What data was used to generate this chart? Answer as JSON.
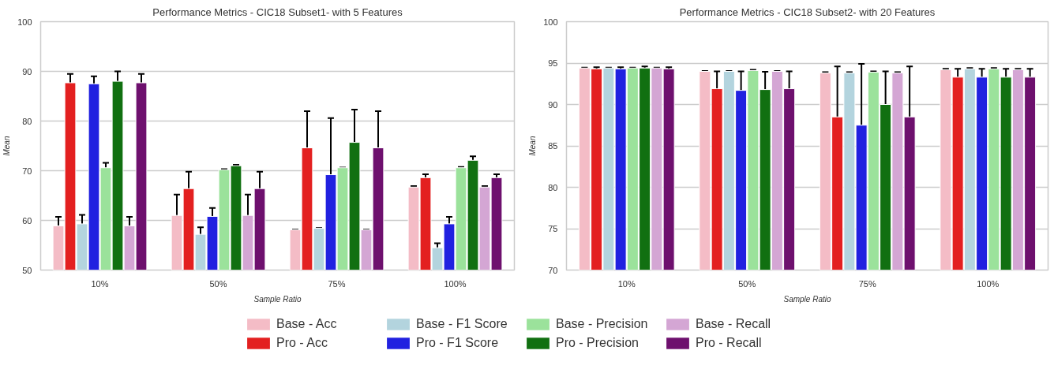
{
  "chart_data": [
    {
      "type": "bar",
      "title": "Performance Metrics - CIC18 Subset1- with 5 Features",
      "xlabel": "Sample Ratio",
      "ylabel": "Mean",
      "categories": [
        "10%",
        "50%",
        "75%",
        "100%"
      ],
      "ylim": [
        50,
        100
      ],
      "yticks": [
        50,
        60,
        70,
        80,
        90,
        100
      ],
      "grid": "y",
      "legend": "bottom",
      "series": [
        {
          "name": "Base - Acc",
          "color": "#f4bcc6",
          "values": [
            58.9,
            61.0,
            58.1,
            66.7
          ],
          "errors": [
            1.8,
            4.2,
            0.05,
            0.2
          ]
        },
        {
          "name": "Pro - Acc",
          "color": "#e32020",
          "values": [
            87.7,
            66.4,
            74.6,
            68.6
          ],
          "errors": [
            1.8,
            3.4,
            7.4,
            0.7
          ]
        },
        {
          "name": "Base - F1 Score",
          "color": "#b3d4de",
          "values": [
            59.3,
            57.2,
            58.4,
            54.5
          ],
          "errors": [
            1.8,
            1.4,
            0.05,
            0.9
          ]
        },
        {
          "name": "Pro - F1 Score",
          "color": "#2121e0",
          "values": [
            87.5,
            60.8,
            69.2,
            59.3
          ],
          "errors": [
            1.5,
            1.7,
            11.4,
            1.4
          ]
        },
        {
          "name": "Base - Precision",
          "color": "#9be29b",
          "values": [
            70.6,
            70.2,
            70.6,
            70.6
          ],
          "errors": [
            1.0,
            0.1,
            0.05,
            0.15
          ]
        },
        {
          "name": "Pro - Precision",
          "color": "#117011",
          "values": [
            88.0,
            71.0,
            75.7,
            72.1
          ],
          "errors": [
            2.0,
            0.2,
            6.6,
            0.8
          ]
        },
        {
          "name": "Base - Recall",
          "color": "#d4a6d4",
          "values": [
            58.9,
            61.0,
            58.1,
            66.7
          ],
          "errors": [
            1.8,
            4.2,
            0.05,
            0.2
          ]
        },
        {
          "name": "Pro - Recall",
          "color": "#6e106e",
          "values": [
            87.7,
            66.4,
            74.6,
            68.6
          ],
          "errors": [
            1.8,
            3.4,
            7.4,
            0.7
          ]
        }
      ]
    },
    {
      "type": "bar",
      "title": "Performance Metrics - CIC18 Subset2- with 20 Features",
      "xlabel": "Sample Ratio",
      "ylabel": "Mean",
      "categories": [
        "10%",
        "50%",
        "75%",
        "100%"
      ],
      "ylim": [
        70,
        100
      ],
      "yticks": [
        70,
        75,
        80,
        85,
        90,
        95,
        100
      ],
      "grid": "y",
      "series": [
        {
          "color": "#f4bcc6",
          "values": [
            94.4,
            94.0,
            93.8,
            94.2
          ],
          "errors": [
            0.05,
            0.05,
            0.1,
            0.1
          ]
        },
        {
          "color": "#e32020",
          "values": [
            94.3,
            91.9,
            88.5,
            93.3
          ],
          "errors": [
            0.2,
            2.1,
            6.1,
            1.0
          ]
        },
        {
          "color": "#b3d4de",
          "values": [
            94.4,
            94.0,
            93.8,
            94.3
          ],
          "errors": [
            0.05,
            0.05,
            0.1,
            0.1
          ]
        },
        {
          "color": "#2121e0",
          "values": [
            94.3,
            91.7,
            87.5,
            93.3
          ],
          "errors": [
            0.2,
            2.3,
            7.4,
            1.0
          ]
        },
        {
          "color": "#9be29b",
          "values": [
            94.4,
            94.1,
            93.9,
            94.3
          ],
          "errors": [
            0.05,
            0.1,
            0.1,
            0.1
          ]
        },
        {
          "color": "#117011",
          "values": [
            94.4,
            91.8,
            90.0,
            93.3
          ],
          "errors": [
            0.2,
            2.15,
            4.0,
            1.0
          ]
        },
        {
          "color": "#d4a6d4",
          "values": [
            94.4,
            94.0,
            93.8,
            94.2
          ],
          "errors": [
            0.05,
            0.05,
            0.1,
            0.1
          ]
        },
        {
          "color": "#6e106e",
          "values": [
            94.3,
            91.9,
            88.5,
            93.3
          ],
          "errors": [
            0.2,
            2.1,
            6.1,
            1.0
          ]
        }
      ]
    }
  ]
}
